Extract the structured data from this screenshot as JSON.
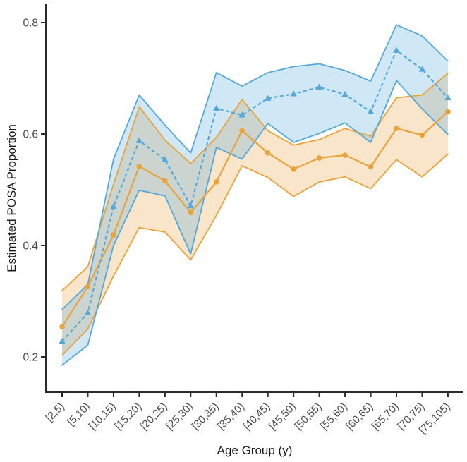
{
  "chart_data": {
    "type": "line",
    "title": "",
    "xlabel": "Age Group (y)",
    "ylabel": "Estimated POSA Proportion",
    "categories": [
      "[2,5)",
      "[5,10)",
      "[10,15)",
      "[15,20)",
      "[20,25)",
      "[25,30)",
      "[30,35)",
      "[35,40)",
      "[40,45)",
      "[45,50)",
      "[50,55)",
      "[55,60)",
      "[60,65)",
      "[65,70)",
      "[70,75)",
      "[75,105)"
    ],
    "y_ticks": [
      0.2,
      0.4,
      0.6,
      0.8
    ],
    "y_tick_labels": [
      "0.2",
      "0.4",
      "0.6",
      "0.8"
    ],
    "ylim": [
      0.14,
      0.83
    ],
    "grid": "off",
    "legend": "none",
    "series": [
      {
        "name": "blue-triangle-series",
        "color": "#56A8DB",
        "line_style": "dashed",
        "marker": "triangle",
        "values": [
          0.228,
          0.279,
          0.47,
          0.588,
          0.554,
          0.471,
          0.646,
          0.634,
          0.664,
          0.672,
          0.684,
          0.671,
          0.64,
          0.75,
          0.716,
          0.665
        ],
        "band_upper": [
          0.285,
          0.33,
          0.555,
          0.67,
          0.616,
          0.566,
          0.71,
          0.686,
          0.71,
          0.721,
          0.726,
          0.714,
          0.695,
          0.796,
          0.776,
          0.731
        ],
        "band_lower": [
          0.185,
          0.221,
          0.4,
          0.499,
          0.489,
          0.385,
          0.576,
          0.555,
          0.619,
          0.585,
          0.601,
          0.62,
          0.585,
          0.696,
          0.645,
          0.599
        ]
      },
      {
        "name": "orange-circle-series",
        "color": "#E8A33C",
        "line_style": "solid",
        "marker": "circle",
        "values": [
          0.254,
          0.326,
          0.419,
          0.542,
          0.516,
          0.459,
          0.514,
          0.606,
          0.566,
          0.537,
          0.557,
          0.562,
          0.541,
          0.61,
          0.598,
          0.64
        ],
        "band_upper": [
          0.319,
          0.362,
          0.51,
          0.649,
          0.589,
          0.547,
          0.594,
          0.662,
          0.606,
          0.58,
          0.59,
          0.61,
          0.596,
          0.665,
          0.67,
          0.709
        ],
        "band_lower": [
          0.203,
          0.25,
          0.345,
          0.432,
          0.424,
          0.374,
          0.454,
          0.543,
          0.522,
          0.488,
          0.514,
          0.523,
          0.502,
          0.554,
          0.523,
          0.564
        ]
      }
    ],
    "axis_color": "#2b2b2b",
    "tick_label_color": "#4a4a4a"
  }
}
